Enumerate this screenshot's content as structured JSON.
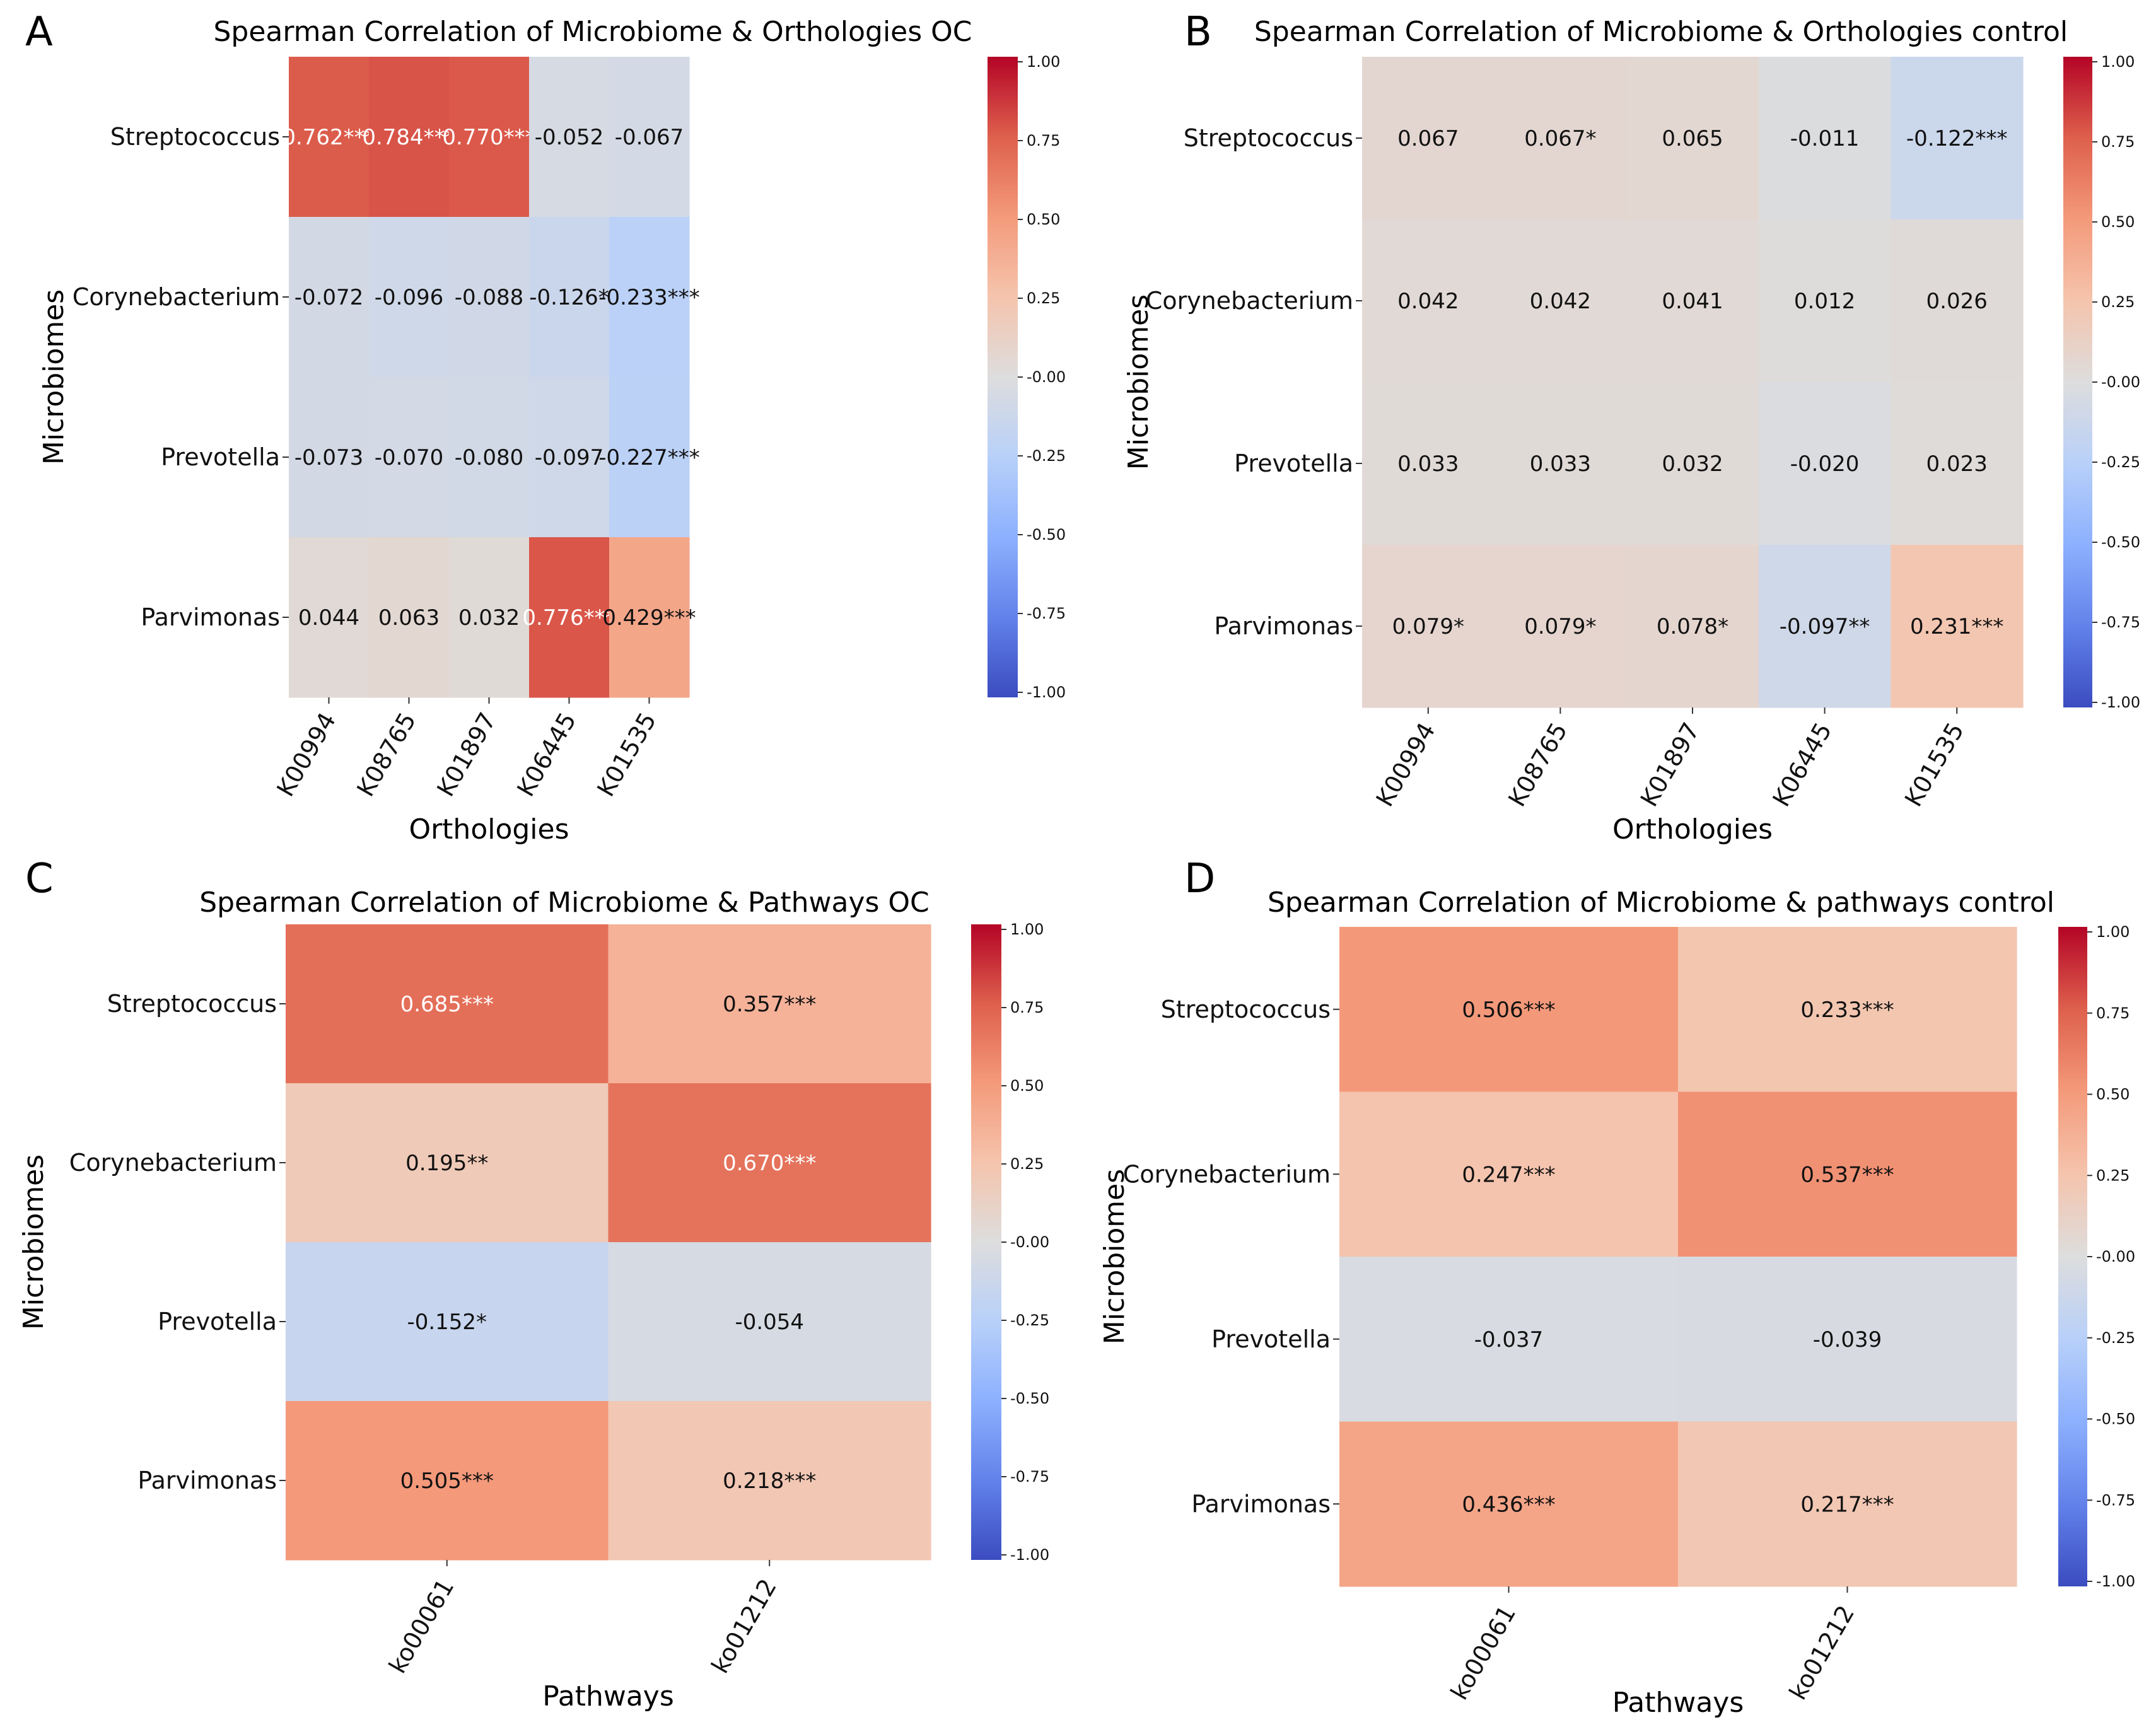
{
  "colorbar": {
    "ticks": [
      "1.00",
      "0.75",
      "0.50",
      "0.25",
      "-0.00",
      "-0.25",
      "-0.50",
      "-0.75",
      "-1.00"
    ],
    "colormap": "coolwarm",
    "range": [
      -1,
      1
    ]
  },
  "chart_data": [
    {
      "panel": "A",
      "type": "heatmap",
      "title": "Spearman Correlation of Microbiome & Orthologies OC",
      "xlabel": "Orthologies",
      "ylabel": "Microbiomes",
      "x": [
        "K00994",
        "K08765",
        "K01897",
        "K06445",
        "K01535"
      ],
      "y": [
        "Streptococcus",
        "Corynebacterium",
        "Prevotella",
        "Parvimonas"
      ],
      "values": [
        [
          0.762,
          0.784,
          0.77,
          -0.052,
          -0.067
        ],
        [
          -0.072,
          -0.096,
          -0.088,
          -0.126,
          -0.233
        ],
        [
          -0.073,
          -0.07,
          -0.08,
          -0.097,
          -0.227
        ],
        [
          0.044,
          0.063,
          0.032,
          0.776,
          0.429
        ]
      ],
      "labels": [
        [
          "0.762***",
          "0.784***",
          "0.770***",
          "-0.052",
          "-0.067"
        ],
        [
          "-0.072",
          "-0.096",
          "-0.088",
          "-0.126*",
          "-0.233***"
        ],
        [
          "-0.073",
          "-0.070",
          "-0.080",
          "-0.097",
          "-0.227***"
        ],
        [
          "0.044",
          "0.063",
          "0.032",
          "0.776***",
          "0.429***"
        ]
      ],
      "vmin": -1,
      "vmax": 1
    },
    {
      "panel": "B",
      "type": "heatmap",
      "title": "Spearman Correlation of Microbiome & Orthologies control",
      "xlabel": "Orthologies",
      "ylabel": "Microbiomes",
      "x": [
        "K00994",
        "K08765",
        "K01897",
        "K06445",
        "K01535"
      ],
      "y": [
        "Streptococcus",
        "Corynebacterium",
        "Prevotella",
        "Parvimonas"
      ],
      "values": [
        [
          0.067,
          0.067,
          0.065,
          -0.011,
          -0.122
        ],
        [
          0.042,
          0.042,
          0.041,
          0.012,
          0.026
        ],
        [
          0.033,
          0.033,
          0.032,
          -0.02,
          0.023
        ],
        [
          0.079,
          0.079,
          0.078,
          -0.097,
          0.231
        ]
      ],
      "labels": [
        [
          "0.067",
          "0.067*",
          "0.065",
          "-0.011",
          "-0.122***"
        ],
        [
          "0.042",
          "0.042",
          "0.041",
          "0.012",
          "0.026"
        ],
        [
          "0.033",
          "0.033",
          "0.032",
          "-0.020",
          "0.023"
        ],
        [
          "0.079*",
          "0.079*",
          "0.078*",
          "-0.097**",
          "0.231***"
        ]
      ],
      "vmin": -1,
      "vmax": 1
    },
    {
      "panel": "C",
      "type": "heatmap",
      "title": "Spearman Correlation of Microbiome & Pathways OC",
      "xlabel": "Pathways",
      "ylabel": "Microbiomes",
      "x": [
        "ko00061",
        "ko01212"
      ],
      "y": [
        "Streptococcus",
        "Corynebacterium",
        "Prevotella",
        "Parvimonas"
      ],
      "values": [
        [
          0.685,
          0.357
        ],
        [
          0.195,
          0.67
        ],
        [
          -0.152,
          -0.054
        ],
        [
          0.505,
          0.218
        ]
      ],
      "labels": [
        [
          "0.685***",
          "0.357***"
        ],
        [
          "0.195**",
          "0.670***"
        ],
        [
          "-0.152*",
          "-0.054"
        ],
        [
          "0.505***",
          "0.218***"
        ]
      ],
      "vmin": -1,
      "vmax": 1
    },
    {
      "panel": "D",
      "type": "heatmap",
      "title": "Spearman Correlation of Microbiome & pathways control",
      "xlabel": "Pathways",
      "ylabel": "Microbiomes",
      "x": [
        "ko00061",
        "ko01212"
      ],
      "y": [
        "Streptococcus",
        "Corynebacterium",
        "Prevotella",
        "Parvimonas"
      ],
      "values": [
        [
          0.506,
          0.233
        ],
        [
          0.247,
          0.537
        ],
        [
          -0.037,
          -0.039
        ],
        [
          0.436,
          0.217
        ]
      ],
      "labels": [
        [
          "0.506***",
          "0.233***"
        ],
        [
          "0.247***",
          "0.537***"
        ],
        [
          "-0.037",
          "-0.039"
        ],
        [
          "0.436***",
          "0.217***"
        ]
      ],
      "vmin": -1,
      "vmax": 1
    }
  ]
}
